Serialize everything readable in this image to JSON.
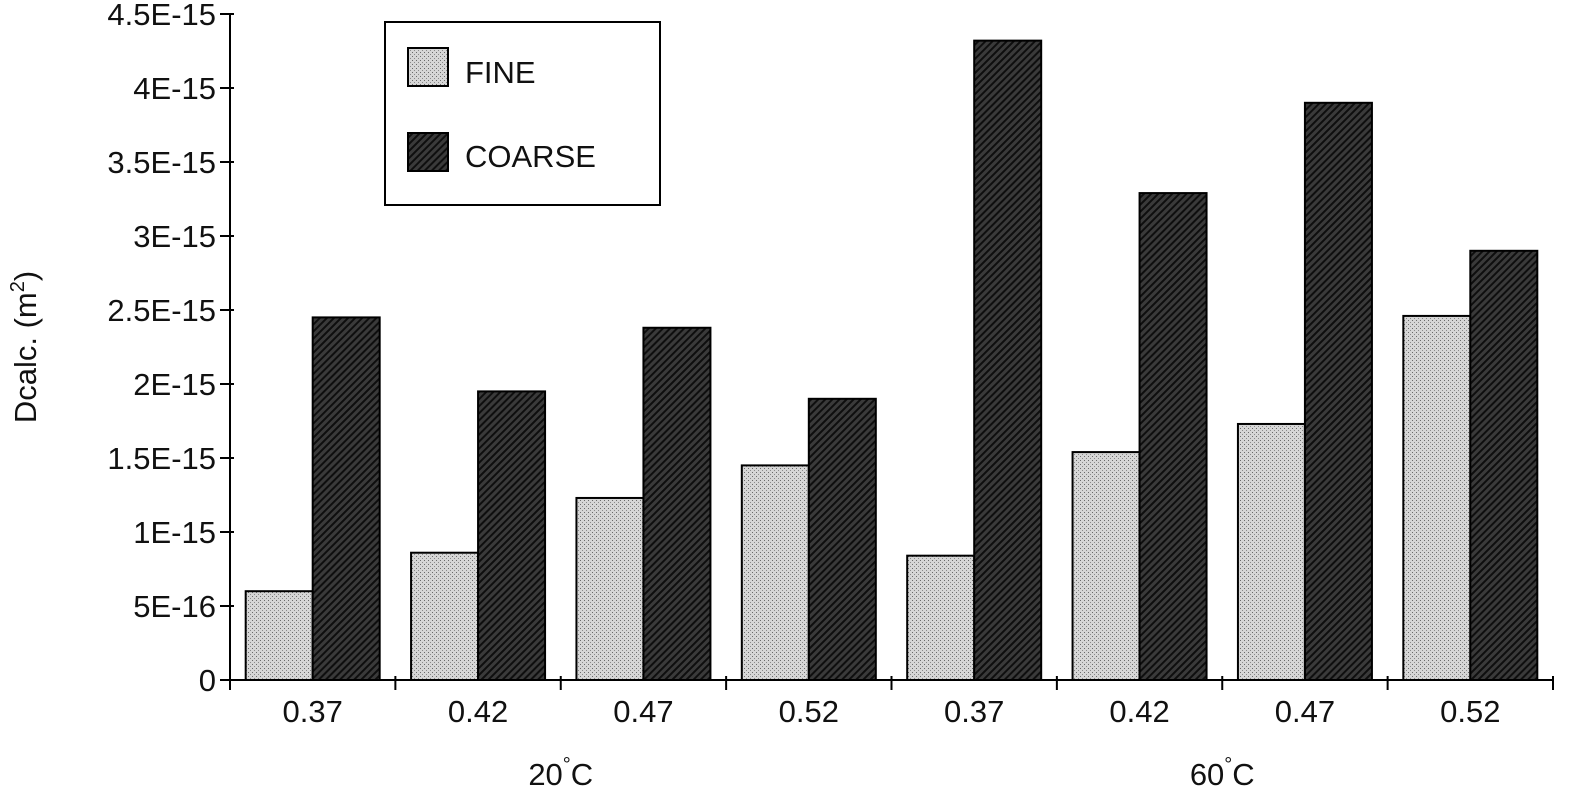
{
  "chart_data": {
    "type": "bar",
    "ylabel": "Dcalc. (m²)",
    "ylabel_main": "Dcalc. (m",
    "ylabel_sup": "2",
    "ylabel_close": ")",
    "ylim": [
      0,
      4.5e-15
    ],
    "yticks": [
      0,
      5e-16,
      1e-15,
      1.5e-15,
      2e-15,
      2.5e-15,
      3e-15,
      3.5e-15,
      4e-15,
      4.5e-15
    ],
    "ytick_labels": [
      "0",
      "5E-16",
      "1E-15",
      "1.5E-15",
      "2E-15",
      "2.5E-15",
      "3E-15",
      "3.5E-15",
      "4E-15",
      "4.5E-15"
    ],
    "categories": [
      "0.37",
      "0.42",
      "0.47",
      "0.52",
      "0.37",
      "0.42",
      "0.47",
      "0.52"
    ],
    "groups": [
      {
        "label": "20",
        "degree": "°",
        "unit": "C",
        "start": 0,
        "end": 3
      },
      {
        "label": "60",
        "degree": "°",
        "unit": "C",
        "start": 4,
        "end": 7
      }
    ],
    "series": [
      {
        "name": "FINE",
        "pattern": "dotted-light-gray",
        "values": [
          6e-16,
          8.6e-16,
          1.23e-15,
          1.45e-15,
          8.4e-16,
          1.54e-15,
          1.73e-15,
          2.46e-15
        ]
      },
      {
        "name": "COARSE",
        "pattern": "hatched-dark",
        "values": [
          2.45e-15,
          1.95e-15,
          2.38e-15,
          1.9e-15,
          4.32e-15,
          3.29e-15,
          3.9e-15,
          2.9e-15
        ]
      }
    ],
    "legend": {
      "position": "top-left",
      "entries": [
        "FINE",
        "COARSE"
      ]
    },
    "grid": false
  }
}
